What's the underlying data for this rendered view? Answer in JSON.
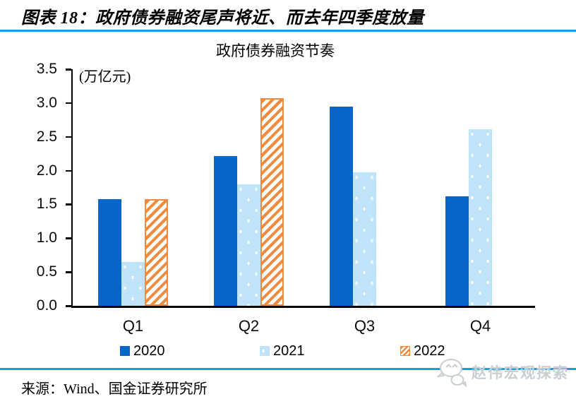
{
  "header": {
    "title": "图表 18：政府债券融资尾声将近、而去年四季度放量"
  },
  "chart_data": {
    "type": "bar",
    "title": "政府债券融资节奏",
    "unit_label": "(万亿元)",
    "categories": [
      "Q1",
      "Q2",
      "Q3",
      "Q4"
    ],
    "series": [
      {
        "name": "2020",
        "color": "#0667C8",
        "pattern": "solid",
        "values": [
          1.58,
          2.22,
          2.95,
          1.62
        ]
      },
      {
        "name": "2021",
        "color": "#BFE3F8",
        "pattern": "dots",
        "values": [
          0.65,
          1.8,
          1.97,
          2.61
        ]
      },
      {
        "name": "2022",
        "color": "#F18A3C",
        "pattern": "diagonal-stripes",
        "values": [
          1.58,
          3.07,
          null,
          null
        ]
      }
    ],
    "ylim": [
      0,
      3.5
    ],
    "ytick_step": 0.5,
    "grid": false,
    "legend_position": "bottom"
  },
  "footer": {
    "source": "来源：Wind、国金证券研究所",
    "watermark": "赵伟宏观探索"
  },
  "colors": {
    "rule_blue": "#189FDC",
    "bar_2020": "#0667C8",
    "bar_2021": "#BFE3F8",
    "bar_2022": "#F18A3C",
    "axis_black": "#000000",
    "watermark_gray": "#C9CED2"
  }
}
